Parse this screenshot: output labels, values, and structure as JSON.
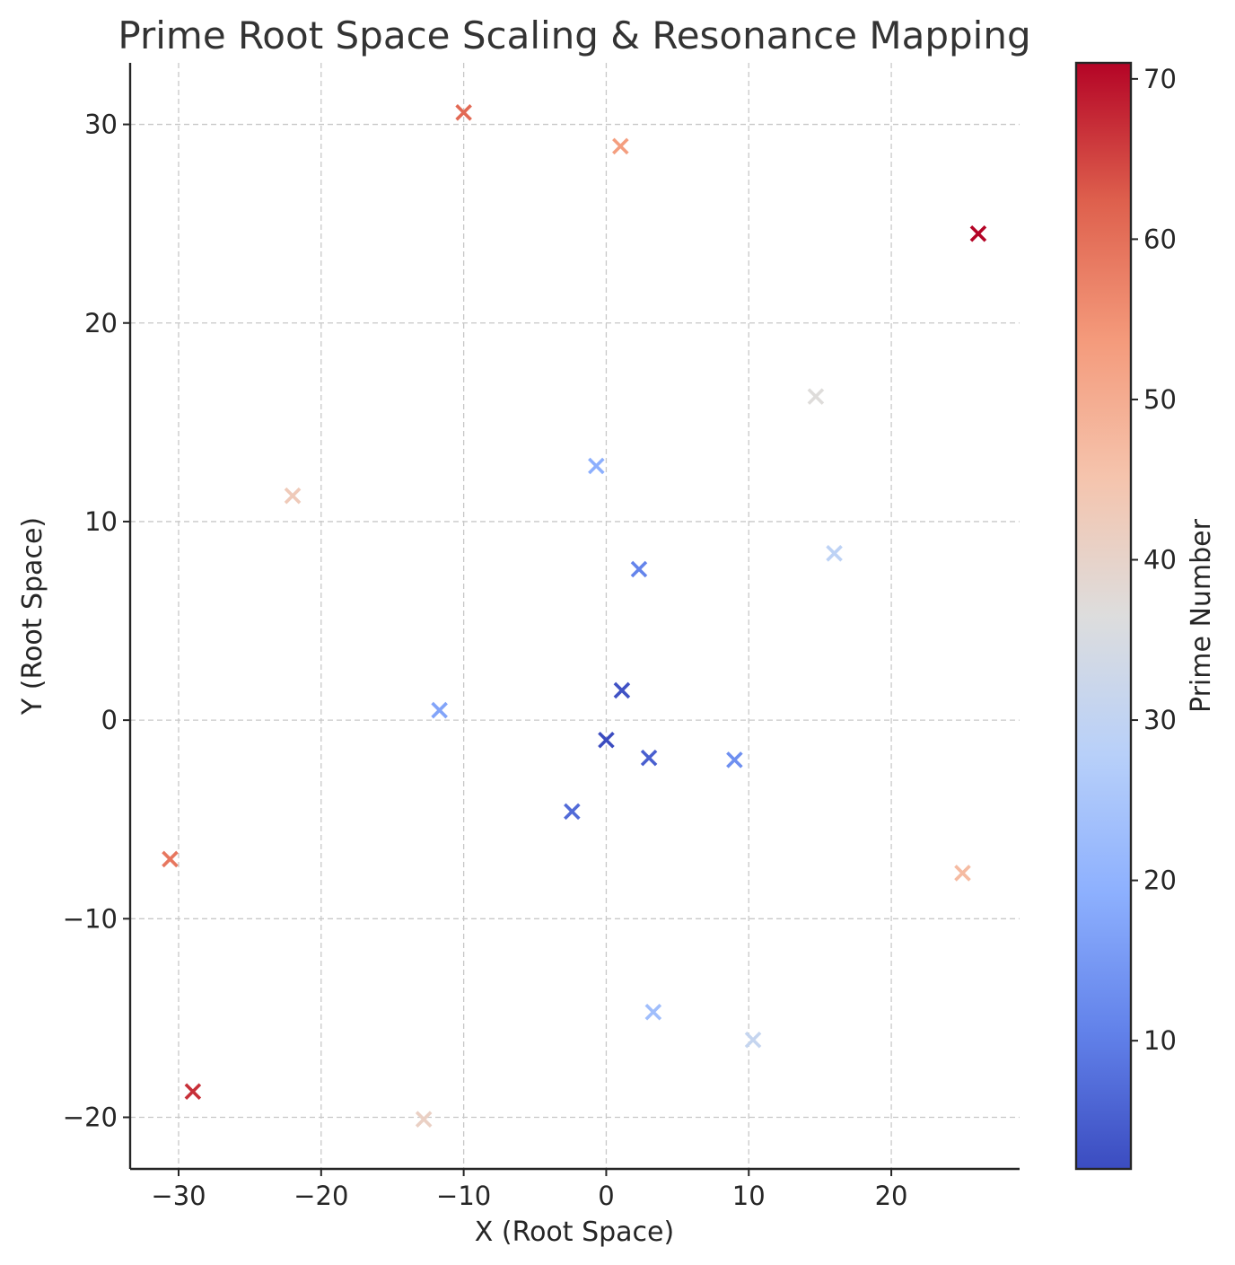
{
  "chart_data": {
    "type": "scatter",
    "title": "Prime Root Space Scaling & Resonance Mapping",
    "xlabel": "X (Root Space)",
    "ylabel": "Y (Root Space)",
    "colorbar_label": "Prime Number",
    "colormap": "coolwarm",
    "marker": "x",
    "xlim": [
      -33.4,
      29.0
    ],
    "ylim": [
      -22.6,
      33.1
    ],
    "xticks": [
      -30,
      -20,
      -10,
      0,
      10,
      20
    ],
    "yticks": [
      -20,
      -10,
      0,
      10,
      20,
      30
    ],
    "clim": [
      2,
      71
    ],
    "colorbar_ticks": [
      10,
      20,
      30,
      40,
      50,
      60,
      70
    ],
    "grid": true,
    "points": [
      {
        "x": 0.0,
        "y": -1.0,
        "prime": 2
      },
      {
        "x": 1.1,
        "y": 1.5,
        "prime": 3
      },
      {
        "x": 3.0,
        "y": -1.9,
        "prime": 5
      },
      {
        "x": -2.4,
        "y": -4.6,
        "prime": 7
      },
      {
        "x": 2.3,
        "y": 7.6,
        "prime": 11
      },
      {
        "x": 9.0,
        "y": -2.0,
        "prime": 13
      },
      {
        "x": -11.7,
        "y": 0.5,
        "prime": 17
      },
      {
        "x": -0.7,
        "y": 12.8,
        "prime": 19
      },
      {
        "x": 3.3,
        "y": -14.7,
        "prime": 23
      },
      {
        "x": 16.0,
        "y": 8.4,
        "prime": 29
      },
      {
        "x": 10.3,
        "y": -16.1,
        "prime": 31
      },
      {
        "x": 14.7,
        "y": 16.3,
        "prime": 37
      },
      {
        "x": -12.8,
        "y": -20.1,
        "prime": 41
      },
      {
        "x": -22.0,
        "y": 11.3,
        "prime": 43
      },
      {
        "x": 25.0,
        "y": -7.7,
        "prime": 47
      },
      {
        "x": 1.0,
        "y": 28.9,
        "prime": 53
      },
      {
        "x": -30.6,
        "y": -7.0,
        "prime": 59
      },
      {
        "x": -10.0,
        "y": 30.6,
        "prime": 61
      },
      {
        "x": -29.0,
        "y": -18.7,
        "prime": 67
      },
      {
        "x": 26.1,
        "y": 24.5,
        "prime": 71
      }
    ]
  }
}
